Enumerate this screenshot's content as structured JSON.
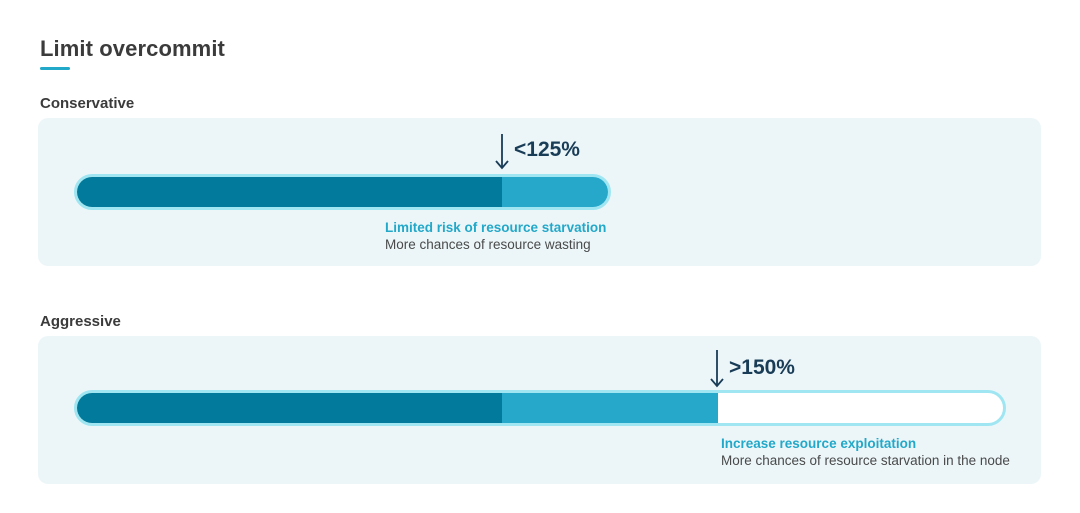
{
  "title": "Limit overcommit",
  "colors": {
    "accent": "#22a8c8",
    "bar_dark": "#017a9c",
    "bar_light": "#25a8c9",
    "bar_border": "#9fe6f2",
    "panel_bg": "#ecf6f9",
    "threshold_text": "#1a3d57"
  },
  "icons": {
    "marker": "arrow-down-icon"
  },
  "sections": [
    {
      "label": "Conservative",
      "threshold": "<125%",
      "caption_strong": "Limited risk of resource starvation",
      "caption_weak": "More chances of resource wasting"
    },
    {
      "label": "Aggressive",
      "threshold": ">150%",
      "caption_strong": "Increase resource exploitation",
      "caption_weak": "More chances of resource starvation in the node"
    }
  ]
}
